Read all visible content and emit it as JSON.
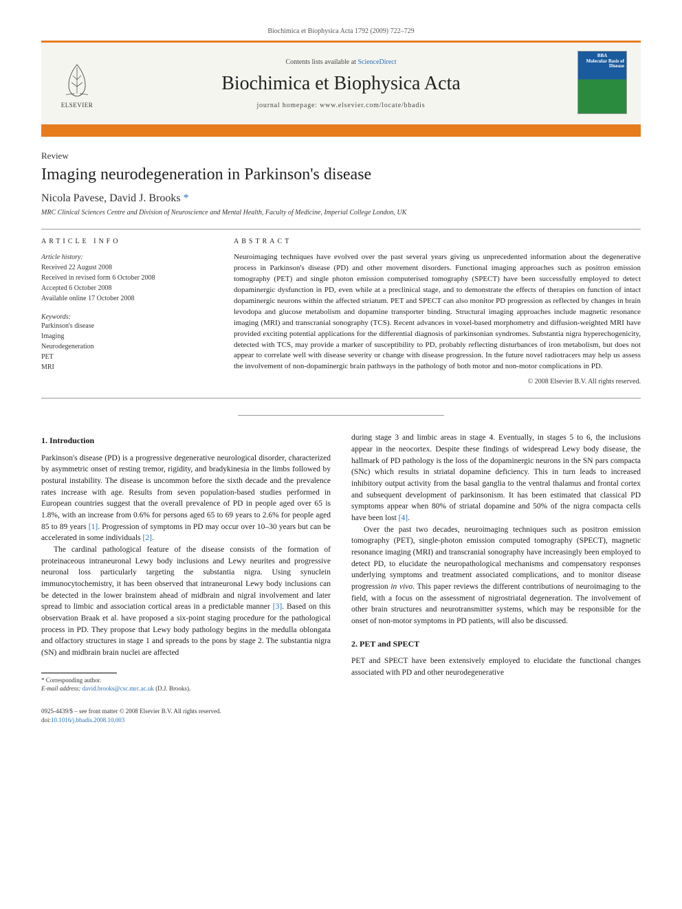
{
  "header": {
    "running": "Biochimica et Biophysica Acta 1792 (2009) 722–729"
  },
  "banner": {
    "contents_prefix": "Contents lists available at ",
    "contents_link": "ScienceDirect",
    "journal": "Biochimica et Biophysica Acta",
    "homepage_prefix": "journal homepage: ",
    "homepage": "www.elsevier.com/locate/bbadis",
    "publisher": "ELSEVIER",
    "cover_title": "BBA",
    "cover_sub": "Molecular Basis of Disease"
  },
  "article": {
    "type": "Review",
    "title": "Imaging neurodegeneration in Parkinson's disease",
    "authors": "Nicola Pavese, David J. Brooks",
    "corr_mark": "*",
    "affiliation": "MRC Clinical Sciences Centre and Division of Neuroscience and Mental Health, Faculty of Medicine, Imperial College London, UK"
  },
  "info": {
    "heading": "ARTICLE INFO",
    "history_label": "Article history:",
    "received": "Received 22 August 2008",
    "revised": "Received in revised form 6 October 2008",
    "accepted": "Accepted 6 October 2008",
    "online": "Available online 17 October 2008",
    "keywords_label": "Keywords:",
    "kw1": "Parkinson's disease",
    "kw2": "Imaging",
    "kw3": "Neurodegeneration",
    "kw4": "PET",
    "kw5": "MRI"
  },
  "abstract": {
    "heading": "ABSTRACT",
    "text": "Neuroimaging techniques have evolved over the past several years giving us unprecedented information about the degenerative process in Parkinson's disease (PD) and other movement disorders. Functional imaging approaches such as positron emission tomography (PET) and single photon emission computerised tomography (SPECT) have been successfully employed to detect dopaminergic dysfunction in PD, even while at a preclinical stage, and to demonstrate the effects of therapies on function of intact dopaminergic neurons within the affected striatum. PET and SPECT can also monitor PD progression as reflected by changes in brain levodopa and glucose metabolism and dopamine transporter binding. Structural imaging approaches include magnetic resonance imaging (MRI) and transcranial sonography (TCS). Recent advances in voxel-based morphometry and diffusion-weighted MRI have provided exciting potential applications for the differential diagnosis of parkinsonian syndromes. Substantia nigra hyperechogenicity, detected with TCS, may provide a marker of susceptibility to PD, probably reflecting disturbances of iron metabolism, but does not appear to correlate well with disease severity or change with disease progression. In the future novel radiotracers may help us assess the involvement of non-dopaminergic brain pathways in the pathology of both motor and non-motor complications in PD.",
    "copyright": "© 2008 Elsevier B.V. All rights reserved."
  },
  "body": {
    "sec1_title": "1. Introduction",
    "sec1_p1": "Parkinson's disease (PD) is a progressive degenerative neurological disorder, characterized by asymmetric onset of resting tremor, rigidity, and bradykinesia in the limbs followed by postural instability. The disease is uncommon before the sixth decade and the prevalence rates increase with age. Results from seven population-based studies performed in European countries suggest that the overall prevalence of PD in people aged over 65 is 1.8%, with an increase from 0.6% for persons aged 65 to 69 years to 2.6% for people aged 85 to 89 years [1]. Progression of symptoms in PD may occur over 10–30 years but can be accelerated in some individuals [2].",
    "sec1_p2": "The cardinal pathological feature of the disease consists of the formation of proteinaceous intraneuronal Lewy body inclusions and Lewy neurites and progressive neuronal loss particularly targeting the substantia nigra. Using synuclein immunocytochemistry, it has been observed that intraneuronal Lewy body inclusions can be detected in the lower brainstem ahead of midbrain and nigral involvement and later spread to limbic and association cortical areas in a predictable manner [3]. Based on this observation Braak et al. have proposed a six-point staging procedure for the pathological process in PD. They propose that Lewy body pathology begins in the medulla oblongata and olfactory structures in stage 1 and spreads to the pons by stage 2. The substantia nigra (SN) and midbrain brain nuclei are affected",
    "sec1_p3": "during stage 3 and limbic areas in stage 4. Eventually, in stages 5 to 6, the inclusions appear in the neocortex. Despite these findings of widespread Lewy body disease, the hallmark of PD pathology is the loss of the dopaminergic neurons in the SN pars compacta (SNc) which results in striatal dopamine deficiency. This in turn leads to increased inhibitory output activity from the basal ganglia to the ventral thalamus and frontal cortex and subsequent development of parkinsonism. It has been estimated that classical PD symptoms appear when 80% of striatal dopamine and 50% of the nigra compacta cells have been lost [4].",
    "sec1_p4": "Over the past two decades, neuroimaging techniques such as positron emission tomography (PET), single-photon emission computed tomography (SPECT), magnetic resonance imaging (MRI) and transcranial sonography have increasingly been employed to detect PD, to elucidate the neuropathological mechanisms and compensatory responses underlying symptoms and treatment associated complications, and to monitor disease progression in vivo. This paper reviews the different contributions of neuroimaging to the field, with a focus on the assessment of nigrostriatal degeneration. The involvement of other brain structures and neurotransmitter systems, which may be responsible for the onset of non-motor symptoms in PD patients, will also be discussed.",
    "sec2_title": "2. PET and SPECT",
    "sec2_p1": "PET and SPECT have been extensively employed to elucidate the functional changes associated with PD and other neurodegenerative"
  },
  "footnote": {
    "corr_label": "* Corresponding author.",
    "email_label": "E-mail address:",
    "email": "david.brooks@csc.mrc.ac.uk",
    "email_who": "(D.J. Brooks)."
  },
  "footer": {
    "issn_line": "0925-4439/$ – see front matter © 2008 Elsevier B.V. All rights reserved.",
    "doi_prefix": "doi:",
    "doi": "10.1016/j.bbadis.2008.10.003"
  },
  "colors": {
    "accent": "#e77c1f",
    "link": "#2a6fb5",
    "text": "#1a1a1a"
  }
}
